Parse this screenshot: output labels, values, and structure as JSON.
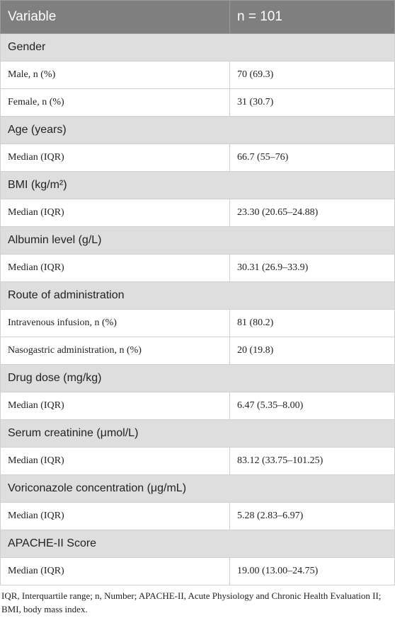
{
  "table": {
    "header": [
      "Variable",
      "n = 101"
    ],
    "sections": [
      {
        "title": "Gender",
        "rows": [
          [
            "Male, n (%)",
            "70 (69.3)"
          ],
          [
            "Female, n (%)",
            "31 (30.7)"
          ]
        ]
      },
      {
        "title": "Age (years)",
        "rows": [
          [
            "Median (IQR)",
            "66.7 (55–76)"
          ]
        ]
      },
      {
        "title": "BMI (kg/m²)",
        "rows": [
          [
            "Median (IQR)",
            "23.30 (20.65–24.88)"
          ]
        ]
      },
      {
        "title": "Albumin level (g/L)",
        "rows": [
          [
            "Median (IQR)",
            "30.31 (26.9–33.9)"
          ]
        ]
      },
      {
        "title": "Route of administration",
        "rows": [
          [
            "Intravenous infusion, n (%)",
            "81 (80.2)"
          ],
          [
            "Nasogastric administration, n (%)",
            "20 (19.8)"
          ]
        ]
      },
      {
        "title": "Drug dose (mg/kg)",
        "rows": [
          [
            "Median (IQR)",
            "6.47 (5.35–8.00)"
          ]
        ]
      },
      {
        "title": "Serum creatinine (μmol/L)",
        "rows": [
          [
            "Median (IQR)",
            "83.12 (33.75–101.25)"
          ]
        ]
      },
      {
        "title": "Voriconazole concentration (μg/mL)",
        "rows": [
          [
            "Median (IQR)",
            "5.28 (2.83–6.97)"
          ]
        ]
      },
      {
        "title": "APACHE-II Score",
        "rows": [
          [
            "Median (IQR)",
            "19.00 (13.00–24.75)"
          ]
        ]
      }
    ]
  },
  "footnote": "IQR, Interquartile range; n, Number; APACHE-II, Acute Physiology and Chronic Health Evaluation II; BMI, body mass index."
}
